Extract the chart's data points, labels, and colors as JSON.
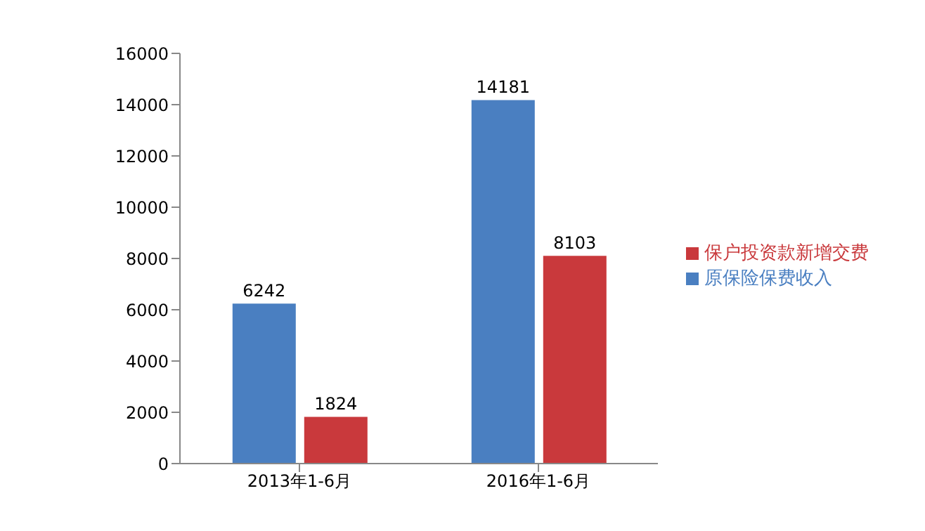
{
  "chart_data": {
    "type": "bar",
    "categories": [
      "2013年1-6月",
      "2016年1-6月"
    ],
    "series": [
      {
        "name": "原保险保费收入",
        "color": "#4a7fc1",
        "values": [
          6242,
          14181
        ]
      },
      {
        "name": "保户投资款新增交费",
        "color": "#c9393c",
        "values": [
          1824,
          8103
        ]
      }
    ],
    "ylim": [
      0,
      16000
    ],
    "yticks": [
      0,
      2000,
      4000,
      6000,
      8000,
      10000,
      12000,
      14000,
      16000
    ],
    "grid": false,
    "legend": "right",
    "data_labels": true
  }
}
